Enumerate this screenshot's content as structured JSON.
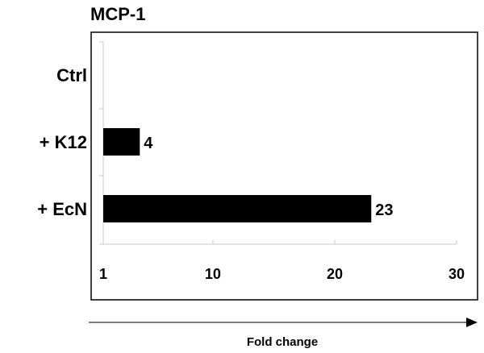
{
  "chart_data": {
    "type": "bar",
    "orientation": "horizontal",
    "title": "MCP-1",
    "xlabel": "Fold change",
    "ylabel": "",
    "categories": [
      "Ctrl",
      "+ K12",
      "+ EcN"
    ],
    "values": [
      null,
      4,
      23
    ],
    "data_labels": [
      "",
      "4",
      "23"
    ],
    "x_ticks": [
      1,
      10,
      20,
      30
    ],
    "xlim": [
      1,
      30
    ],
    "bar_color": "#000000",
    "grid": false
  }
}
